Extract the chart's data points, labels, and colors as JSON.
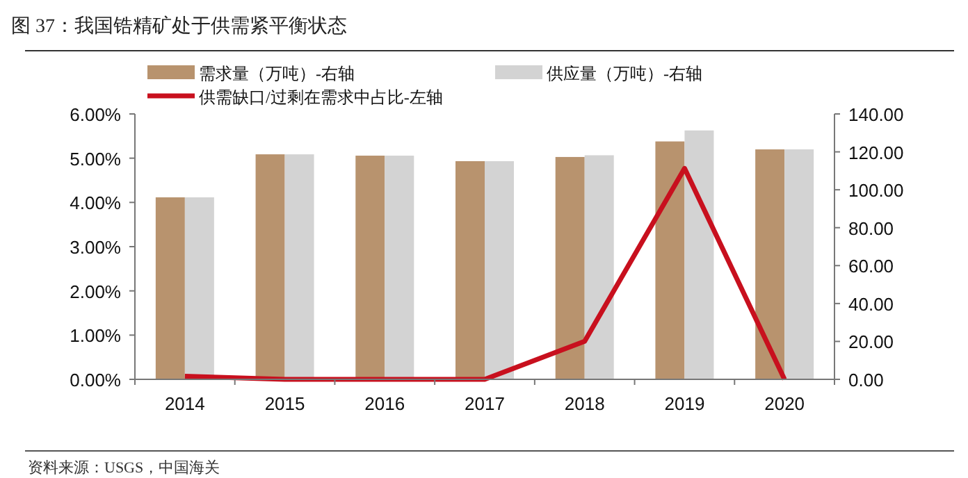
{
  "chart_data": {
    "type": "bar",
    "title": "图 37：我国锆精矿处于供需紧平衡状态",
    "categories": [
      "2014",
      "2015",
      "2016",
      "2017",
      "2018",
      "2019",
      "2020"
    ],
    "series": [
      {
        "name": "需求量（万吨）-右轴",
        "axis": "y2",
        "color": "#b8936e",
        "values": [
          96,
          118.7,
          118,
          115.1,
          117.3,
          125.5,
          121.3
        ]
      },
      {
        "name": "供应量（万吨）-右轴",
        "axis": "y2",
        "color": "#d3d3d3",
        "values": [
          96,
          118.7,
          118,
          115.1,
          118.2,
          131.3,
          121.3
        ]
      },
      {
        "name": "供需缺口/过剩在需求中占比-左轴",
        "type": "line",
        "axis": "y",
        "color": "#c8101e",
        "values": [
          0.07,
          0,
          0,
          0,
          0.86,
          4.77,
          0
        ]
      }
    ],
    "ylim": [
      0,
      6
    ],
    "yticks": [
      {
        "value": 0,
        "label": "0.00%"
      },
      {
        "value": 1,
        "label": "1.00%"
      },
      {
        "value": 2,
        "label": "2.00%"
      },
      {
        "value": 3,
        "label": "3.00%"
      },
      {
        "value": 4,
        "label": "4.00%"
      },
      {
        "value": 5,
        "label": "5.00%"
      },
      {
        "value": 6,
        "label": "6.00%"
      }
    ],
    "y2lim": [
      0,
      140
    ],
    "y2ticks": [
      {
        "value": 0,
        "label": "0.00"
      },
      {
        "value": 20,
        "label": "20.00"
      },
      {
        "value": 40,
        "label": "40.00"
      },
      {
        "value": 60,
        "label": "60.00"
      },
      {
        "value": 80,
        "label": "80.00"
      },
      {
        "value": 100,
        "label": "100.00"
      },
      {
        "value": 120,
        "label": "120.00"
      },
      {
        "value": 140,
        "label": "140.00"
      }
    ],
    "grid": false,
    "legend": "top",
    "marker": "none",
    "line_style": "solid",
    "annotations": [
      "资料来源：USGS，中国海关"
    ]
  }
}
